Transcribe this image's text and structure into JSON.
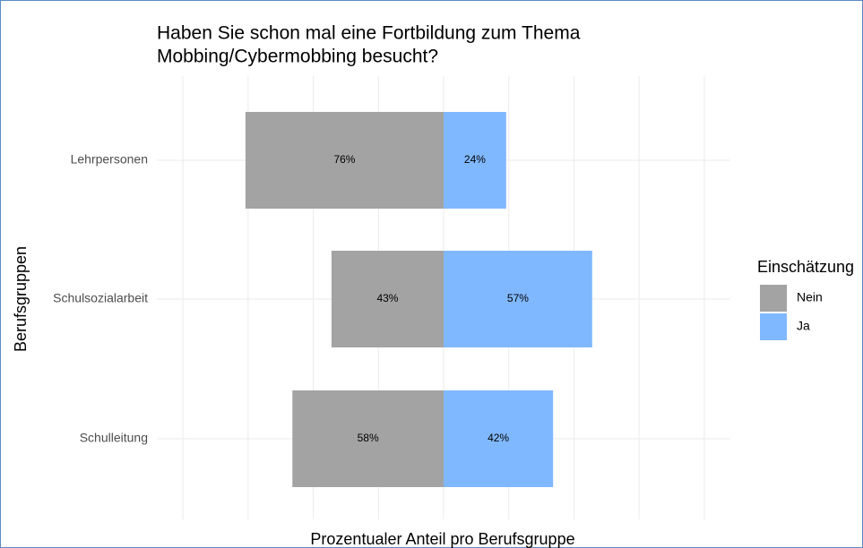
{
  "chart_data": {
    "type": "diverging_bar",
    "title": [
      "Haben Sie schon mal eine Fortbildung zum Thema",
      "Mobbing/Cybermobbing besucht?"
    ],
    "x_label": "Prozentualer Anteil pro Berufsgruppe",
    "y_label": "Berufsgruppen",
    "legend_title": "Einschätzung",
    "categories": [
      "Lehrpersonen",
      "Schulsozialarbeit",
      "Schulleitung"
    ],
    "series": [
      {
        "name": "Nein",
        "color": "#a3a3a3",
        "direction": "left",
        "values": [
          76,
          43,
          58
        ],
        "value_labels": [
          "76%",
          "43%",
          "58%"
        ]
      },
      {
        "name": "Ja",
        "color": "#80b8ff",
        "direction": "right",
        "values": [
          24,
          57,
          42
        ],
        "value_labels": [
          "24%",
          "57%",
          "42%"
        ]
      }
    ],
    "xlim": [
      -110,
      110
    ],
    "xticks": [
      -100,
      -75,
      -50,
      -25,
      0,
      25,
      50,
      75,
      100
    ],
    "grid": true,
    "legend": "right"
  }
}
